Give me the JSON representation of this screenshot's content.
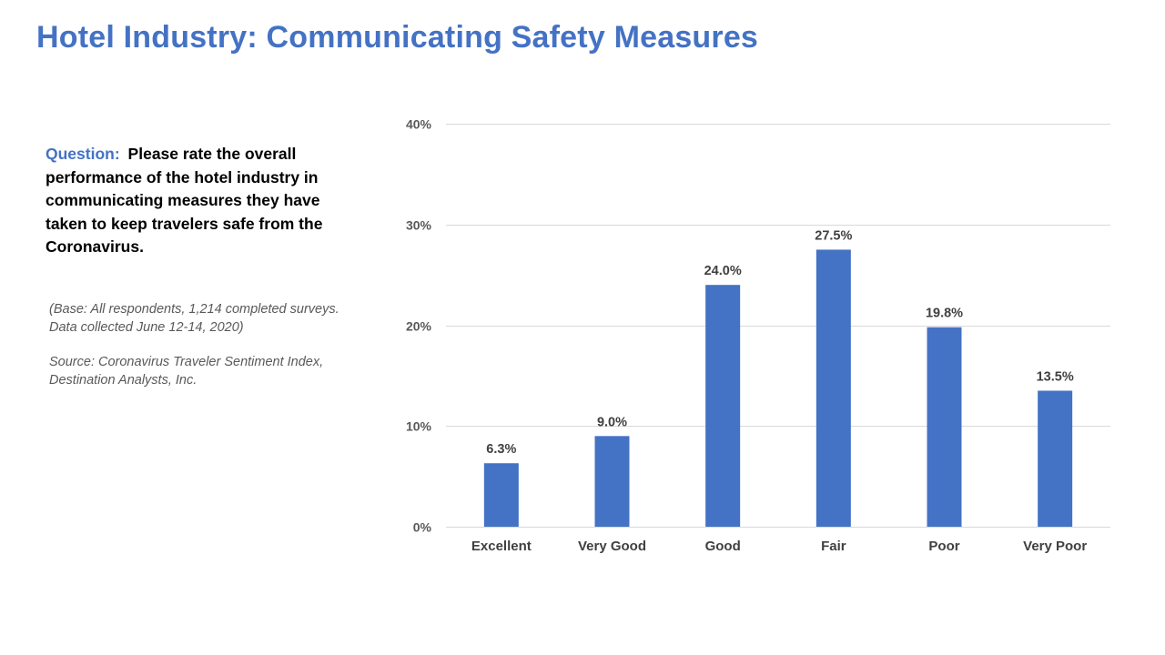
{
  "slide": {
    "title": "Hotel Industry: Communicating Safety Measures",
    "question_label": "Question:",
    "question_text": "Please rate the overall performance of the hotel industry in communicating measures they have taken to keep travelers safe from the Coronavirus.",
    "base_note": "(Base: All respondents, 1,214 completed surveys. Data collected June 12-14, 2020)",
    "source_note": "Source: Coronavirus Traveler Sentiment Index, Destination Analysts, Inc."
  },
  "chart_data": {
    "type": "bar",
    "categories": [
      "Excellent",
      "Very Good",
      "Good",
      "Fair",
      "Poor",
      "Very Poor"
    ],
    "values": [
      6.3,
      9.0,
      24.0,
      27.5,
      19.8,
      13.5
    ],
    "data_labels": [
      "6.3%",
      "9.0%",
      "24.0%",
      "27.5%",
      "19.8%",
      "13.5%"
    ],
    "y_ticks": [
      0,
      10,
      20,
      30,
      40
    ],
    "y_tick_labels": [
      "0%",
      "10%",
      "20%",
      "30%",
      "40%"
    ],
    "ylim": [
      0,
      40
    ],
    "grid": true,
    "bar_color": "#4472C4",
    "grid_color": "#D9D9D9",
    "title": "",
    "xlabel": "",
    "ylabel": ""
  }
}
